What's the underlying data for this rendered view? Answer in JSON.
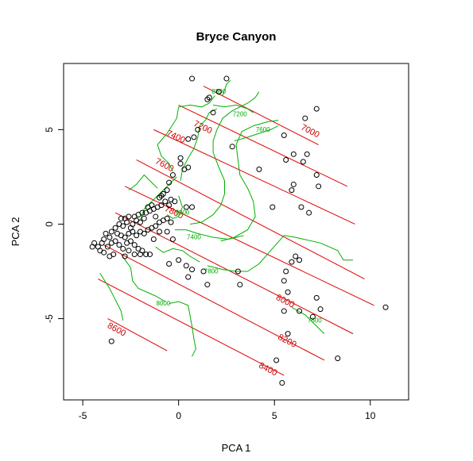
{
  "chart_data": {
    "type": "scatter",
    "title": "Bryce Canyon",
    "xlabel": "PCA 1",
    "ylabel": "PCA 2",
    "xlim": [
      -6.0,
      12.0
    ],
    "ylim": [
      -9.3,
      8.5
    ],
    "x_ticks": [
      -5,
      0,
      5,
      10
    ],
    "y_ticks": [
      -5,
      0,
      5
    ],
    "x_tick_labels": [
      "-5",
      "0",
      "5",
      "10"
    ],
    "y_tick_labels": [
      "-5",
      "0",
      "5"
    ],
    "grid": false,
    "legend": "none",
    "colors": {
      "points": "#000000",
      "red_contours": "#dd0000",
      "green_contours": "#00b000",
      "frame": "#000000"
    },
    "points": [
      [
        0.7,
        7.7
      ],
      [
        2.5,
        7.7
      ],
      [
        2.1,
        7.0
      ],
      [
        1.5,
        6.6
      ],
      [
        1.6,
        6.7
      ],
      [
        1.8,
        5.9
      ],
      [
        7.2,
        6.1
      ],
      [
        6.6,
        5.6
      ],
      [
        1.0,
        5.0
      ],
      [
        0.8,
        4.6
      ],
      [
        0.5,
        4.5
      ],
      [
        2.8,
        4.1
      ],
      [
        0.1,
        3.5
      ],
      [
        0.1,
        3.2
      ],
      [
        0.3,
        2.9
      ],
      [
        0.5,
        3.0
      ],
      [
        6.0,
        3.7
      ],
      [
        6.5,
        3.3
      ],
      [
        6.7,
        3.7
      ],
      [
        5.5,
        4.7
      ],
      [
        5.6,
        3.4
      ],
      [
        4.2,
        2.9
      ],
      [
        7.2,
        2.6
      ],
      [
        7.3,
        2.0
      ],
      [
        6.0,
        2.1
      ],
      [
        5.9,
        1.8
      ],
      [
        -0.3,
        2.6
      ],
      [
        -0.5,
        2.2
      ],
      [
        -0.6,
        1.8
      ],
      [
        -0.8,
        1.6
      ],
      [
        -0.9,
        1.5
      ],
      [
        -1.0,
        1.4
      ],
      [
        -0.7,
        1.2
      ],
      [
        -0.4,
        1.3
      ],
      [
        -0.2,
        1.2
      ],
      [
        -0.5,
        1.0
      ],
      [
        -0.9,
        1.0
      ],
      [
        -1.1,
        0.9
      ],
      [
        -1.3,
        0.8
      ],
      [
        -1.5,
        0.7
      ],
      [
        -1.7,
        0.6
      ],
      [
        -1.9,
        0.6
      ],
      [
        -2.1,
        0.5
      ],
      [
        -2.3,
        0.4
      ],
      [
        -2.6,
        0.4
      ],
      [
        -2.8,
        0.3
      ],
      [
        -3.0,
        0.3
      ],
      [
        -1.4,
        1.0
      ],
      [
        -1.6,
        0.9
      ],
      [
        -1.2,
        0.4
      ],
      [
        -1.8,
        0.3
      ],
      [
        -2.0,
        0.1
      ],
      [
        -2.2,
        0.2
      ],
      [
        -2.4,
        0.0
      ],
      [
        -2.5,
        -0.2
      ],
      [
        -2.7,
        0.1
      ],
      [
        -2.9,
        -0.1
      ],
      [
        -3.1,
        0.0
      ],
      [
        -3.3,
        -0.2
      ],
      [
        -3.5,
        -0.4
      ],
      [
        -3.2,
        -0.5
      ],
      [
        -3.0,
        -0.6
      ],
      [
        -2.8,
        -0.7
      ],
      [
        -2.6,
        -0.5
      ],
      [
        -2.4,
        -0.4
      ],
      [
        -2.2,
        -0.6
      ],
      [
        -2.0,
        -0.4
      ],
      [
        -1.8,
        -0.5
      ],
      [
        -1.6,
        -0.3
      ],
      [
        -1.4,
        -0.2
      ],
      [
        -1.2,
        -0.1
      ],
      [
        -1.0,
        0.1
      ],
      [
        -0.8,
        0.2
      ],
      [
        -0.6,
        0.3
      ],
      [
        -0.4,
        0.1
      ],
      [
        -3.6,
        -0.7
      ],
      [
        -3.8,
        -0.5
      ],
      [
        -3.9,
        -0.8
      ],
      [
        -4.0,
        -1.0
      ],
      [
        -4.2,
        -1.2
      ],
      [
        -4.4,
        -1.0
      ],
      [
        -4.5,
        -1.2
      ],
      [
        -3.7,
        -1.2
      ],
      [
        -3.5,
        -1.0
      ],
      [
        -3.3,
        -0.9
      ],
      [
        -3.1,
        -1.1
      ],
      [
        -2.9,
        -1.3
      ],
      [
        -2.7,
        -1.0
      ],
      [
        -2.5,
        -0.9
      ],
      [
        -2.3,
        -1.1
      ],
      [
        -2.1,
        -1.3
      ],
      [
        -1.9,
        -1.4
      ],
      [
        -1.7,
        -1.6
      ],
      [
        -1.5,
        -1.6
      ],
      [
        -2.6,
        -1.4
      ],
      [
        -2.3,
        -1.6
      ],
      [
        -3.9,
        -1.5
      ],
      [
        -4.1,
        -1.4
      ],
      [
        -3.6,
        -1.7
      ],
      [
        -3.4,
        -1.6
      ],
      [
        -2.8,
        -1.7
      ],
      [
        -0.6,
        -0.4
      ],
      [
        -0.3,
        -0.8
      ],
      [
        -0.5,
        -2.1
      ],
      [
        0.0,
        -1.9
      ],
      [
        0.4,
        -2.2
      ],
      [
        0.5,
        -2.8
      ],
      [
        0.7,
        -2.4
      ],
      [
        1.3,
        -2.5
      ],
      [
        1.5,
        -3.2
      ],
      [
        3.1,
        -2.5
      ],
      [
        3.2,
        -3.2
      ],
      [
        0.4,
        0.9
      ],
      [
        0.7,
        0.9
      ],
      [
        4.9,
        0.9
      ],
      [
        6.4,
        0.9
      ],
      [
        6.8,
        0.6
      ],
      [
        6.1,
        -1.7
      ],
      [
        6.3,
        -1.9
      ],
      [
        5.9,
        -2.0
      ],
      [
        5.6,
        -2.5
      ],
      [
        5.5,
        -3.0
      ],
      [
        5.7,
        -3.6
      ],
      [
        6.3,
        -4.6
      ],
      [
        7.2,
        -3.9
      ],
      [
        7.4,
        -4.5
      ],
      [
        5.5,
        -4.6
      ],
      [
        5.7,
        -5.8
      ],
      [
        5.1,
        -7.2
      ],
      [
        5.4,
        -8.4
      ],
      [
        7.0,
        -4.9
      ],
      [
        10.8,
        -4.4
      ],
      [
        8.3,
        -7.1
      ],
      [
        -3.5,
        -6.2
      ],
      [
        -2.0,
        -1.6
      ],
      [
        -1.0,
        -0.4
      ],
      [
        -1.3,
        -0.8
      ]
    ],
    "red_contours": [
      {
        "label": "7000",
        "start": [
          1.3,
          7.3
        ],
        "end": [
          7.3,
          4.2
        ],
        "label_pos": [
          6.8,
          4.8
        ]
      },
      {
        "label": "7200",
        "start": [
          0.0,
          6.3
        ],
        "end": [
          8.8,
          2.0
        ],
        "label_pos": [
          1.2,
          5.0
        ]
      },
      {
        "label": "7400",
        "start": [
          -1.3,
          5.0
        ],
        "end": [
          9.2,
          0.0
        ],
        "label_pos": [
          -0.2,
          4.5
        ]
      },
      {
        "label": "7600",
        "start": [
          -2.2,
          3.4
        ],
        "end": [
          9.7,
          -2.9
        ],
        "label_pos": [
          -0.8,
          3.0
        ]
      },
      {
        "label": "7800",
        "start": [
          -2.8,
          2.0
        ],
        "end": [
          10.2,
          -4.3
        ],
        "label_pos": [
          -0.3,
          0.5
        ]
      },
      {
        "label": "8000",
        "start": [
          -3.3,
          0.6
        ],
        "end": [
          9.1,
          -5.8
        ],
        "label_pos": [
          5.5,
          -4.2
        ]
      },
      {
        "label": "8200",
        "start": [
          -3.9,
          -1.1
        ],
        "end": [
          7.6,
          -7.2
        ],
        "label_pos": [
          5.6,
          -6.3
        ]
      },
      {
        "label": "8400",
        "start": [
          -4.2,
          -2.9
        ],
        "end": [
          5.5,
          -8.0
        ],
        "label_pos": [
          4.6,
          -7.8
        ]
      },
      {
        "label": "8600",
        "start": [
          -3.7,
          -5.0
        ],
        "end": [
          -0.6,
          -6.7
        ],
        "label_pos": [
          -3.3,
          -5.7
        ]
      }
    ],
    "green_contours": [
      {
        "label": "8800",
        "points": [
          [
            2.3,
            6.8
          ],
          [
            2.5,
            7.4
          ],
          [
            2.7,
            7.6
          ]
        ],
        "label_pos": [
          2.1,
          6.9
        ]
      },
      {
        "label": "7200",
        "points": [
          [
            1.8,
            6.3
          ],
          [
            2.4,
            6.2
          ],
          [
            3.0,
            6.3
          ],
          [
            3.6,
            6.1
          ],
          [
            3.9,
            5.9
          ]
        ],
        "label_pos": [
          3.2,
          5.7
        ]
      },
      {
        "label": "7600",
        "points": [
          [
            2.9,
            4.4
          ],
          [
            3.6,
            4.6
          ],
          [
            4.2,
            4.8
          ],
          [
            4.8,
            5.0
          ],
          [
            5.2,
            5.2
          ]
        ],
        "label_pos": [
          4.4,
          4.9
        ]
      },
      {
        "label": "8000",
        "points": [
          [
            0.0,
            1.5
          ],
          [
            0.2,
            0.9
          ],
          [
            0.0,
            0.4
          ],
          [
            -0.3,
            0.3
          ],
          [
            -0.6,
            0.5
          ]
        ],
        "label_pos": [
          0.2,
          0.5
        ]
      },
      {
        "label": "7400",
        "points": [
          [
            -0.2,
            -0.3
          ],
          [
            0.4,
            -0.3
          ],
          [
            1.0,
            -0.5
          ],
          [
            1.8,
            -0.7
          ],
          [
            2.6,
            -0.8
          ],
          [
            3.4,
            -0.6
          ]
        ],
        "label_pos": [
          0.8,
          -0.8
        ]
      },
      {
        "label": "7800",
        "points": [
          [
            1.5,
            -2.2
          ],
          [
            2.3,
            -2.4
          ],
          [
            3.0,
            -2.5
          ],
          [
            3.6,
            -2.5
          ],
          [
            4.2,
            -2.1
          ],
          [
            4.8,
            -1.4
          ],
          [
            5.5,
            -0.6
          ],
          [
            6.1,
            -0.7
          ],
          [
            7.4,
            -1.0
          ],
          [
            8.3,
            -1.4
          ],
          [
            8.6,
            -1.9
          ],
          [
            9.1,
            -1.9
          ]
        ],
        "label_pos": [
          1.7,
          -2.6
        ]
      },
      {
        "label": "8000",
        "points": [
          [
            -0.5,
            -4.2
          ],
          [
            0.0,
            -4.1
          ],
          [
            0.5,
            -4.3
          ],
          [
            0.7,
            -5.4
          ],
          [
            0.8,
            -6.1
          ],
          [
            0.9,
            -6.6
          ],
          [
            0.7,
            -7.0
          ]
        ],
        "label_pos": [
          -0.8,
          -4.3
        ]
      },
      {
        "label": "7600",
        "points": [
          [
            5.9,
            -4.4
          ],
          [
            6.6,
            -4.8
          ],
          [
            7.2,
            -5.4
          ],
          [
            7.6,
            -5.8
          ]
        ],
        "label_pos": [
          7.1,
          -5.2
        ]
      },
      {
        "label": "",
        "points": [
          [
            -0.3,
            2.8
          ],
          [
            -0.5,
            3.2
          ],
          [
            -0.9,
            3.6
          ],
          [
            -1.1,
            4.2
          ],
          [
            -0.6,
            4.8
          ],
          [
            -0.1,
            5.6
          ],
          [
            0.0,
            6.2
          ],
          [
            0.6,
            6.3
          ],
          [
            1.2,
            6.2
          ],
          [
            1.6,
            6.4
          ],
          [
            1.9,
            6.8
          ]
        ],
        "label_pos": null
      },
      {
        "label": "",
        "points": [
          [
            0.1,
            2.3
          ],
          [
            0.2,
            2.9
          ],
          [
            0.5,
            3.5
          ],
          [
            0.8,
            4.0
          ],
          [
            1.0,
            4.6
          ],
          [
            1.1,
            5.2
          ],
          [
            1.4,
            5.5
          ],
          [
            1.6,
            5.9
          ],
          [
            2.0,
            6.1
          ]
        ],
        "label_pos": null
      },
      {
        "label": "",
        "points": [
          [
            0.6,
            0.0
          ],
          [
            1.2,
            0.1
          ],
          [
            1.8,
            0.5
          ],
          [
            2.2,
            1.0
          ],
          [
            2.4,
            1.6
          ],
          [
            2.4,
            2.3
          ],
          [
            2.1,
            3.0
          ],
          [
            1.8,
            3.8
          ],
          [
            1.8,
            4.4
          ],
          [
            2.0,
            5.0
          ],
          [
            2.3,
            5.6
          ],
          [
            2.8,
            6.0
          ],
          [
            3.6,
            6.4
          ],
          [
            4.0,
            6.7
          ],
          [
            4.2,
            7.0
          ]
        ],
        "label_pos": null
      },
      {
        "label": "",
        "points": [
          [
            2.2,
            -0.9
          ],
          [
            2.9,
            -0.7
          ],
          [
            3.6,
            -0.3
          ],
          [
            4.0,
            0.4
          ],
          [
            3.9,
            1.2
          ],
          [
            3.6,
            1.9
          ],
          [
            3.2,
            2.6
          ],
          [
            3.1,
            3.4
          ],
          [
            3.0,
            4.2
          ],
          [
            3.3,
            4.9
          ],
          [
            3.9,
            5.2
          ],
          [
            4.6,
            5.4
          ],
          [
            5.2,
            5.5
          ]
        ],
        "label_pos": null
      },
      {
        "label": "",
        "points": [
          [
            -3.0,
            -1.6
          ],
          [
            -2.5,
            -2.3
          ],
          [
            -2.4,
            -3.0
          ],
          [
            -2.1,
            -3.4
          ],
          [
            -1.2,
            -3.8
          ],
          [
            -0.7,
            -4.1
          ]
        ],
        "label_pos": null
      },
      {
        "label": "",
        "points": [
          [
            -4.1,
            -2.6
          ],
          [
            -3.6,
            -3.4
          ],
          [
            -3.3,
            -4.0
          ],
          [
            -3.0,
            -4.6
          ],
          [
            -2.9,
            -5.1
          ]
        ],
        "label_pos": null
      },
      {
        "label": "",
        "points": [
          [
            -2.6,
            1.8
          ],
          [
            -2.2,
            2.1
          ],
          [
            -1.8,
            2.6
          ],
          [
            -1.4,
            2.2
          ],
          [
            -1.1,
            1.9
          ]
        ],
        "label_pos": null
      },
      {
        "label": "",
        "points": [
          [
            -2.0,
            0.2
          ],
          [
            -1.8,
            0.8
          ],
          [
            -1.4,
            1.2
          ],
          [
            -0.9,
            1.7
          ],
          [
            -0.4,
            2.2
          ],
          [
            -0.1,
            2.5
          ]
        ],
        "label_pos": null
      },
      {
        "label": "",
        "points": [
          [
            -1.2,
            -1.2
          ],
          [
            -0.8,
            -1.5
          ],
          [
            -0.3,
            -1.3
          ],
          [
            0.2,
            -1.4
          ],
          [
            0.6,
            -1.7
          ],
          [
            1.1,
            -2.0
          ]
        ],
        "label_pos": null
      }
    ]
  }
}
